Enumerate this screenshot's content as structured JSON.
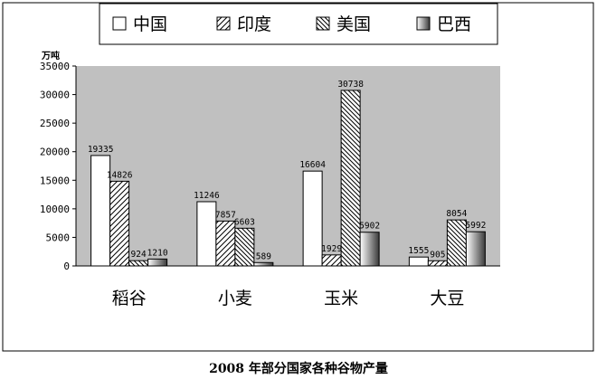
{
  "caption": "2008 年部分国家各种谷物产量",
  "chart_data": {
    "type": "bar",
    "title": "",
    "ylabel": "万吨",
    "xlabel": "",
    "ylim": [
      0,
      35000
    ],
    "yticks": [
      0,
      5000,
      10000,
      15000,
      20000,
      25000,
      30000,
      35000
    ],
    "categories": [
      "稻谷",
      "小麦",
      "玉米",
      "大豆"
    ],
    "legend_position": "top",
    "plot_background": "#c0c0c0",
    "series": [
      {
        "name": "中国",
        "pattern": "white",
        "values": [
          19335,
          11246,
          16604,
          1555
        ]
      },
      {
        "name": "印度",
        "pattern": "hatch-forward",
        "values": [
          14826,
          7857,
          1929,
          905
        ]
      },
      {
        "name": "美国",
        "pattern": "hatch-backward",
        "values": [
          924,
          6603,
          30738,
          8054
        ]
      },
      {
        "name": "巴西",
        "pattern": "gradient",
        "values": [
          1210,
          589,
          5902,
          5992
        ]
      }
    ]
  }
}
